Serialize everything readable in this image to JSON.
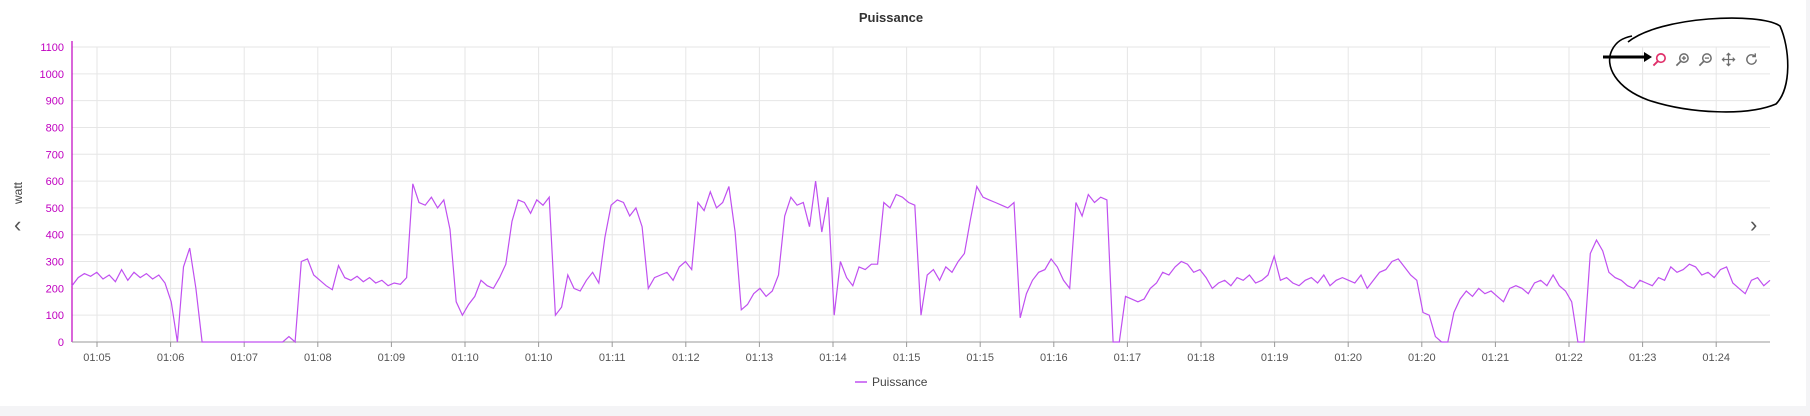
{
  "chart_data": {
    "type": "line",
    "title": "Puissance",
    "ylabel": "watt",
    "ylim": [
      0,
      1100
    ],
    "yticks": [
      0,
      100,
      200,
      300,
      400,
      500,
      600,
      700,
      800,
      900,
      1000,
      1100
    ],
    "xticks": [
      "01:05",
      "01:06",
      "01:07",
      "01:08",
      "01:09",
      "01:10",
      "01:10",
      "01:11",
      "01:12",
      "01:13",
      "01:14",
      "01:15",
      "01:15",
      "01:16",
      "01:17",
      "01:18",
      "01:19",
      "01:20",
      "01:20",
      "01:21",
      "01:22",
      "01:23",
      "01:24"
    ],
    "grid": true,
    "legend": "bottom-center",
    "series": [
      {
        "name": "Puissance",
        "color": "#c050f0",
        "values": [
          210,
          240,
          255,
          245,
          260,
          235,
          250,
          225,
          270,
          230,
          260,
          240,
          255,
          235,
          250,
          220,
          150,
          0,
          280,
          350,
          200,
          0,
          0,
          0,
          0,
          0,
          0,
          0,
          0,
          0,
          0,
          0,
          0,
          0,
          0,
          20,
          0,
          300,
          310,
          250,
          230,
          210,
          195,
          285,
          240,
          230,
          245,
          225,
          240,
          220,
          230,
          210,
          220,
          215,
          240,
          590,
          520,
          510,
          540,
          500,
          530,
          420,
          150,
          100,
          140,
          170,
          230,
          210,
          200,
          240,
          290,
          450,
          530,
          520,
          480,
          530,
          510,
          540,
          100,
          130,
          250,
          200,
          190,
          230,
          260,
          220,
          390,
          510,
          530,
          520,
          470,
          500,
          430,
          200,
          240,
          250,
          260,
          230,
          280,
          300,
          270,
          520,
          490,
          560,
          500,
          520,
          580,
          410,
          120,
          140,
          180,
          200,
          170,
          190,
          250,
          470,
          540,
          510,
          520,
          430,
          600,
          410,
          540,
          100,
          300,
          240,
          210,
          280,
          270,
          290,
          290,
          520,
          500,
          550,
          540,
          520,
          510,
          100,
          250,
          270,
          230,
          280,
          260,
          300,
          330,
          460,
          580,
          540,
          530,
          520,
          510,
          500,
          520,
          90,
          180,
          230,
          260,
          270,
          310,
          280,
          230,
          200,
          520,
          470,
          550,
          520,
          540,
          530,
          0,
          0,
          170,
          160,
          150,
          160,
          200,
          220,
          260,
          250,
          280,
          300,
          290,
          260,
          270,
          240,
          200,
          220,
          230,
          210,
          240,
          230,
          250,
          220,
          230,
          250,
          320,
          230,
          240,
          220,
          210,
          230,
          240,
          220,
          250,
          210,
          230,
          240,
          230,
          220,
          250,
          200,
          230,
          260,
          270,
          300,
          310,
          280,
          250,
          230,
          110,
          100,
          20,
          0,
          0,
          110,
          160,
          190,
          170,
          200,
          180,
          190,
          170,
          150,
          200,
          210,
          200,
          180,
          220,
          230,
          210,
          250,
          210,
          190,
          150,
          0,
          0,
          330,
          380,
          340,
          260,
          240,
          230,
          210,
          200,
          230,
          220,
          210,
          240,
          230,
          280,
          260,
          270,
          290,
          280,
          250,
          260,
          240,
          270,
          280,
          220,
          200,
          180,
          230,
          240,
          210,
          230
        ]
      }
    ]
  },
  "navigation": {
    "prev_label": "‹",
    "next_label": "›"
  },
  "toolbar": {
    "tools": [
      {
        "icon": "zoom-select-icon",
        "active": true
      },
      {
        "icon": "zoom-in-icon"
      },
      {
        "icon": "zoom-out-icon"
      },
      {
        "icon": "pan-icon"
      },
      {
        "icon": "reset-icon"
      }
    ],
    "active_color": "#e0306a",
    "inactive_color": "#6e6e6e"
  }
}
